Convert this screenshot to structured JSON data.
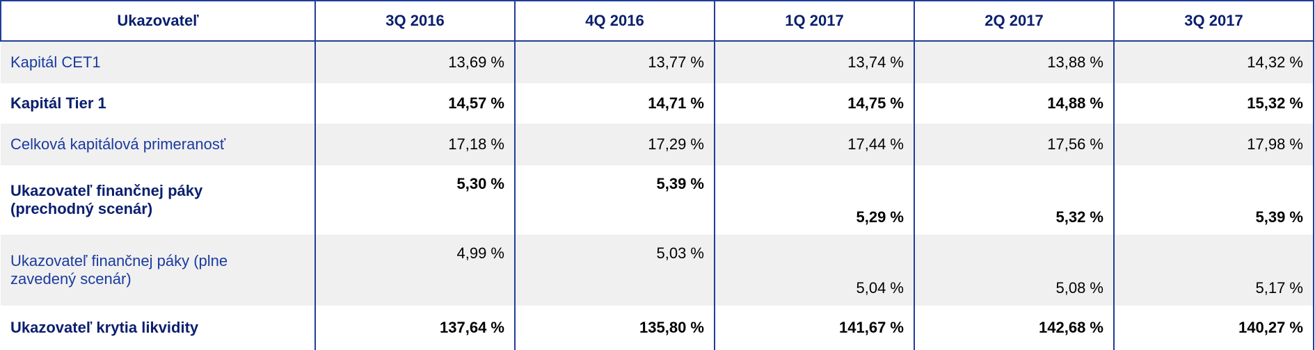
{
  "table": {
    "header": [
      "Ukazovateľ",
      "3Q 2016",
      "4Q 2016",
      "1Q 2017",
      "2Q 2017",
      "3Q 2017"
    ],
    "rows": [
      {
        "label": "Kapitál CET1",
        "values": [
          "13,69 %",
          "13,77 %",
          "13,74 %",
          "13,88 %",
          "14,32 %"
        ]
      },
      {
        "label": "Kapitál Tier 1",
        "values": [
          "14,57 %",
          "14,71 %",
          "14,75 %",
          "14,88 %",
          "15,32 %"
        ]
      },
      {
        "label": "Celková kapitálová primeranosť",
        "values": [
          "17,18 %",
          "17,29 %",
          "17,44 %",
          "17,56 %",
          "17,98 %"
        ]
      },
      {
        "label": "Ukazovateľ finančnej páky (prechodný scenár)",
        "values": [
          "5,30 %",
          "5,39 %",
          "5,29 %",
          "5,32 %",
          "5,39 %"
        ]
      },
      {
        "label": "Ukazovateľ finančnej páky (plne zavedený scenár)",
        "values": [
          "4,99 %",
          "5,03 %",
          "5,04 %",
          "5,08 %",
          "5,17 %"
        ]
      },
      {
        "label": "Ukazovateľ krytia likvidity",
        "values": [
          "137,64 %",
          "135,80 %",
          "141,67 %",
          "142,68 %",
          "140,27 %"
        ]
      }
    ]
  }
}
